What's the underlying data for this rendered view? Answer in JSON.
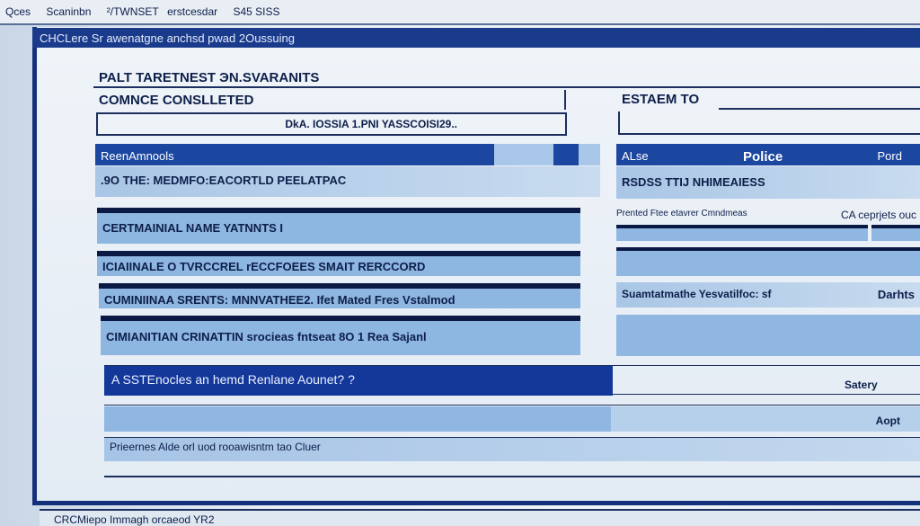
{
  "topbar": {
    "items": [
      "Qces",
      "Scaninbn",
      "²/TWNSET",
      "erstcesdar",
      "S45 SISS"
    ]
  },
  "window": {
    "title": "CHCLere Sr awenatgne anchsd pwad 2Oussuing"
  },
  "form": {
    "heading": "PALT TAREТNEST ЭN.SVARANITS",
    "status_label": "COMNCE CONSLLETED",
    "record_field_value": "DkA. IOSSIA 1.PNI YASSCOISI29..",
    "right_label": "ESTAEM TO",
    "right_field_value": ""
  },
  "left_table": {
    "header": "ReenAmnools",
    "first_row": ".9O THE: MEDMFO:EACORTLD PEELATPAC",
    "rows": [
      "CERTMAINIAL NAME YATNNTS I",
      "ICIAIINALE   O TVRCCREL rECCFOEES SMAIT RERCCORD",
      "CUMINIINAA SRENTS:   MNNVATHEE2. Ifet Mated Fres Vstalmod",
      "CIMIANITIAN CRINATTIN srocieas fntseat 8O 1 Rea Sajanl"
    ]
  },
  "right_table": {
    "headers": [
      "ALse",
      "Police",
      "Pord"
    ],
    "first_row": "RSDSS TTIJ NHIMEAIESS",
    "note_left": "Prented Ftee etavrer Cmndmeas",
    "note_right": "CA ceprjets ouc",
    "row_last": "Suamtatmathe Yesvatilfoc: sf",
    "row_last_right": "Darhts"
  },
  "banner": {
    "text": "A SSTEnocles an hemd Renlane Aounet? ?",
    "right": "Satery"
  },
  "action_row": {
    "right": "Aopt"
  },
  "note_row": {
    "text": "Prieernes Alde orl uod rooawisntm tao Cluer"
  },
  "bottom_bar": {
    "text": "CRCMiepo Immagh orcaeod YR2"
  },
  "colors": {
    "primary": "#1c47a0",
    "dark": "#0b1a45",
    "light": "#8fb7e1"
  }
}
